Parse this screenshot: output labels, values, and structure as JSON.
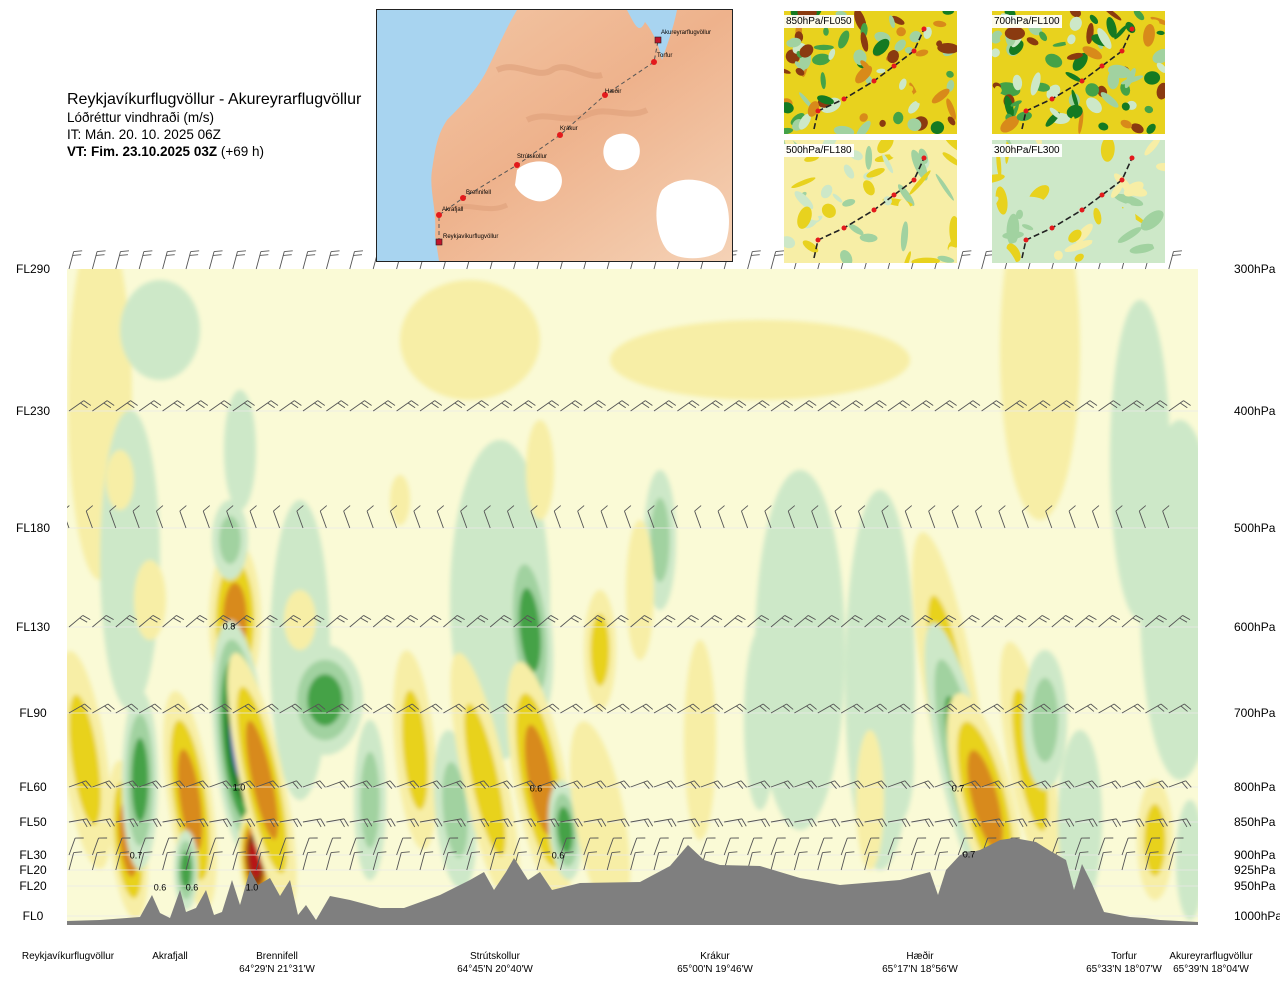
{
  "header": {
    "route": "Reykjavíkurflugvöllur - Akureyrarflugvöllur",
    "parameter": "Lóðréttur vindhraði (m/s)",
    "issue_time": "IT: Mán. 20. 10. 2025 06Z",
    "valid_prefix": "VT: Fim. 23.10.2025 03Z",
    "valid_suffix": "(+69 h)"
  },
  "route_map": {
    "point_labels": [
      "Akureyrarflugvöllur",
      "Torfur",
      "Hæðir",
      "Krákur",
      "Strútskollur",
      "Brennifell",
      "Akrafjall",
      "Reykjavíkurflugvöllur"
    ]
  },
  "level_maps": [
    {
      "label": "850hPa/FL050"
    },
    {
      "label": "700hPa/FL100"
    },
    {
      "label": "500hPa/FL180"
    },
    {
      "label": "300hPa/FL300"
    }
  ],
  "chart_data": {
    "type": "heatmap",
    "title": "",
    "xlabel": "",
    "ylabel": "",
    "flight_levels": [
      "FL290",
      "FL230",
      "FL180",
      "FL130",
      "FL90",
      "FL60",
      "FL50",
      "FL30",
      "FL20",
      "FL20",
      "FL0"
    ],
    "pressure_levels": [
      "300hPa",
      "400hPa",
      "500hPa",
      "600hPa",
      "700hPa",
      "800hPa",
      "850hPa",
      "900hPa",
      "925hPa",
      "950hPa",
      "1000hPa"
    ],
    "pressure_values": [
      300,
      400,
      500,
      600,
      700,
      800,
      850,
      900,
      925,
      950,
      1000
    ],
    "ylim": [
      1000,
      300
    ],
    "stations": [
      {
        "name": "Reykjavíkurflugvöllur",
        "coord": ""
      },
      {
        "name": "Akrafjall",
        "coord": ""
      },
      {
        "name": "Brennifell",
        "coord": "64°29'N 21°31'W"
      },
      {
        "name": "Strútskollur",
        "coord": "64°45'N 20°40'W"
      },
      {
        "name": "Krákur",
        "coord": "65°00'N 19°46'W"
      },
      {
        "name": "Hæðir",
        "coord": "65°17'N 18°56'W"
      },
      {
        "name": "Torfur",
        "coord": "65°33'N 18°07'W"
      },
      {
        "name": "Akureyrarflugvöllur",
        "coord": "65°39'N 18°04'W"
      }
    ],
    "contour_labels": [
      "0.8",
      "1.0",
      "0.7",
      "0.6",
      "0.6",
      "0.7",
      "0.7",
      "1.0",
      "0.6",
      "0.6"
    ],
    "colors": {
      "strong_down": "#b71515",
      "down_3": "#8a3a10",
      "down_2": "#d88a1a",
      "down_1": "#e8d21e",
      "weak_down": "#f7eea6",
      "neutral": "#fafad6",
      "weak_up": "#cde8c8",
      "up_1": "#a1d2a0",
      "up_2": "#44a247",
      "up_3": "#147a22",
      "strong_up": "#6a6ad8",
      "terrain": "#7f7f7f"
    }
  }
}
